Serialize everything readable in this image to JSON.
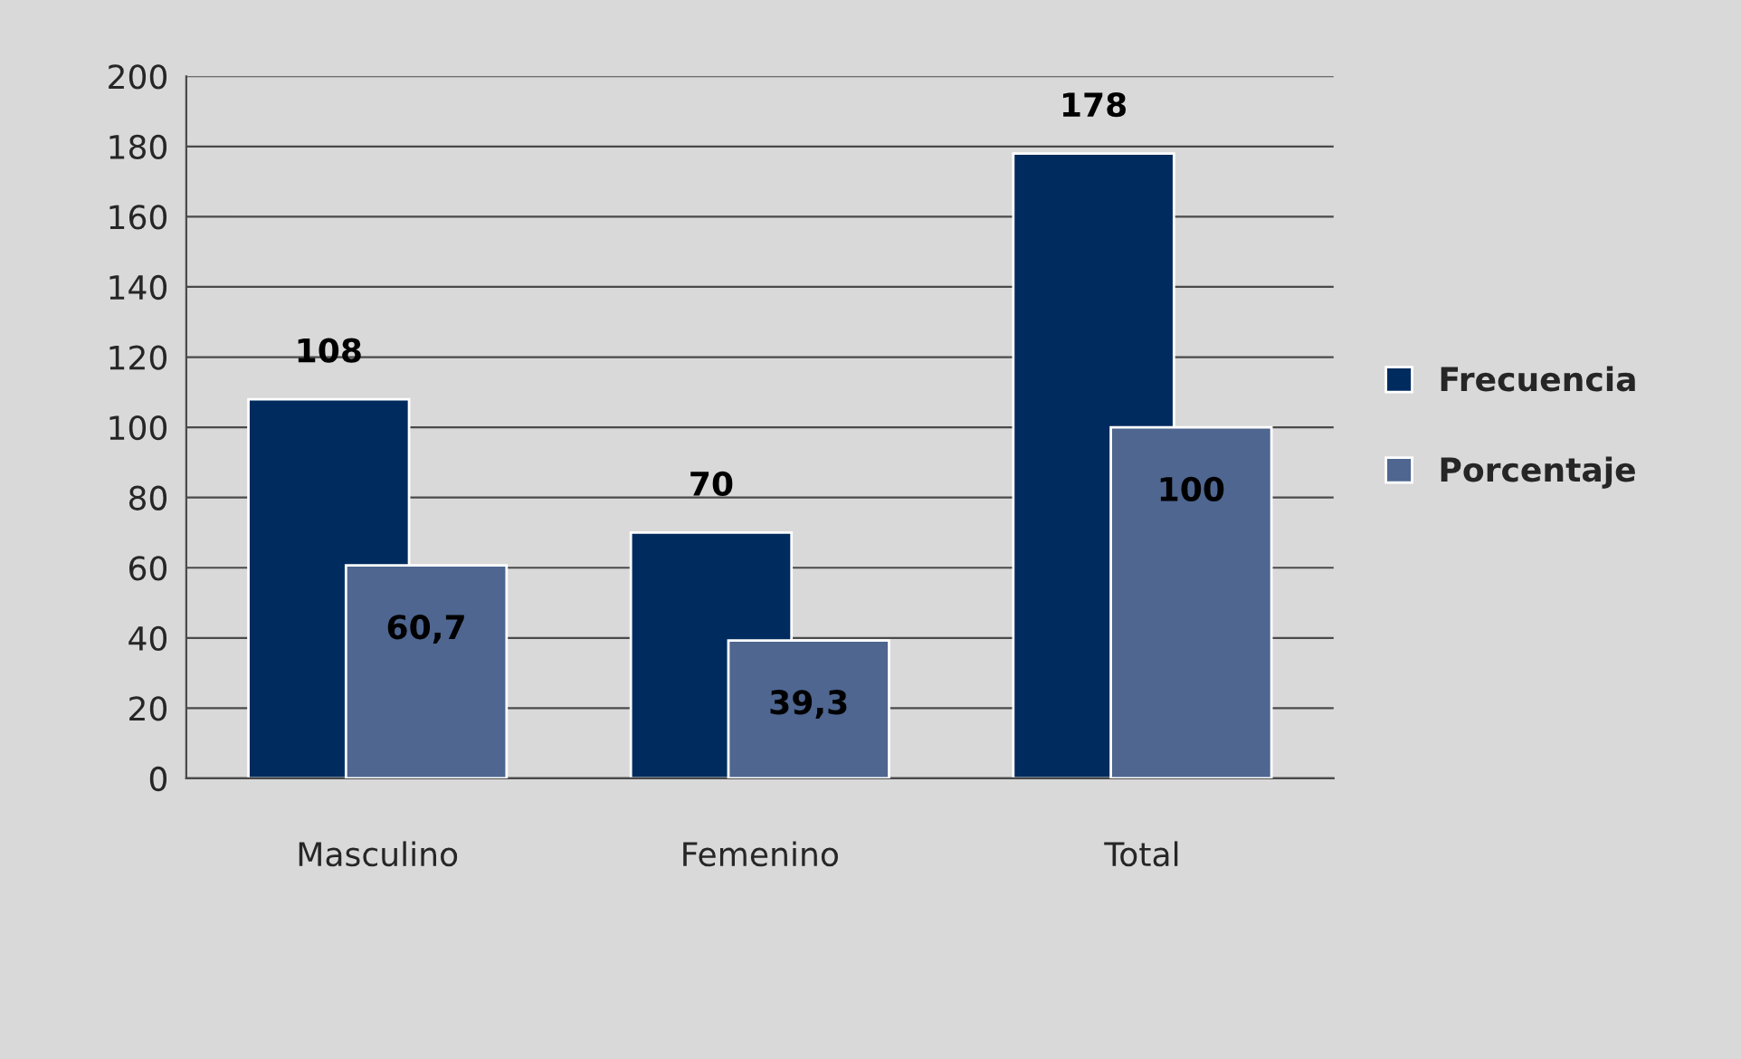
{
  "chart_data": {
    "type": "bar",
    "categories": [
      "Masculino",
      "Femenino",
      "Total"
    ],
    "series": [
      {
        "name": "Frecuencia",
        "color": "#002b5e",
        "values": [
          108,
          70,
          178
        ],
        "value_labels": [
          "108",
          "70",
          "178"
        ]
      },
      {
        "name": "Porcentaje",
        "color": "#4e6690",
        "values": [
          60.7,
          39.3,
          100
        ],
        "value_labels": [
          "60,7",
          "39,3",
          "100"
        ]
      }
    ],
    "ylim": [
      0,
      200
    ],
    "yticks": [
      0,
      20,
      40,
      60,
      80,
      100,
      120,
      140,
      160,
      180,
      200
    ],
    "grid": "y",
    "legend": "right"
  }
}
